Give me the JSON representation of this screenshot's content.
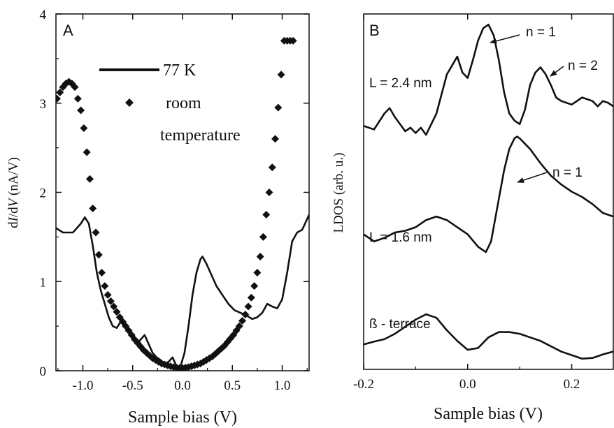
{
  "chart_data": [
    {
      "type": "line",
      "panel_label": "A",
      "xlabel": "Sample bias (V)",
      "ylabel": "dI/dV (nA/V)",
      "xlim": [
        -1.27,
        1.27
      ],
      "ylim": [
        0,
        4
      ],
      "x_ticks": [
        -1.0,
        -0.5,
        0.0,
        0.5,
        1.0
      ],
      "x_tick_labels": [
        "-1.0",
        "-0.5",
        "0.0",
        "0.5",
        "1.0"
      ],
      "y_ticks": [
        0,
        1,
        2,
        3,
        4
      ],
      "y_tick_labels": [
        "0",
        "1",
        "2",
        "3",
        "4"
      ],
      "legend_placement": "top-center",
      "series": [
        {
          "name": "77 K",
          "style": "solid-line",
          "x": [
            -1.27,
            -1.2,
            -1.1,
            -1.02,
            -0.98,
            -0.94,
            -0.9,
            -0.86,
            -0.82,
            -0.78,
            -0.74,
            -0.7,
            -0.66,
            -0.62,
            -0.58,
            -0.54,
            -0.5,
            -0.46,
            -0.42,
            -0.38,
            -0.34,
            -0.3,
            -0.26,
            -0.22,
            -0.18,
            -0.14,
            -0.1,
            -0.06,
            -0.02,
            0.02,
            0.06,
            0.1,
            0.14,
            0.18,
            0.2,
            0.24,
            0.28,
            0.34,
            0.4,
            0.46,
            0.52,
            0.58,
            0.64,
            0.7,
            0.75,
            0.8,
            0.85,
            0.9,
            0.95,
            1.0,
            1.05,
            1.1,
            1.15,
            1.2,
            1.25,
            1.27
          ],
          "y": [
            1.6,
            1.55,
            1.55,
            1.65,
            1.72,
            1.65,
            1.4,
            1.1,
            0.9,
            0.75,
            0.6,
            0.5,
            0.48,
            0.55,
            0.5,
            0.45,
            0.35,
            0.3,
            0.35,
            0.4,
            0.3,
            0.2,
            0.15,
            0.12,
            0.08,
            0.1,
            0.15,
            0.05,
            0.05,
            0.2,
            0.5,
            0.85,
            1.1,
            1.25,
            1.28,
            1.2,
            1.1,
            0.95,
            0.85,
            0.75,
            0.68,
            0.65,
            0.62,
            0.58,
            0.6,
            0.65,
            0.75,
            0.72,
            0.7,
            0.8,
            1.1,
            1.45,
            1.55,
            1.58,
            1.7,
            1.75
          ]
        },
        {
          "name": "room temperature",
          "style": "diamond-markers",
          "x": [
            -1.26,
            -1.23,
            -1.2,
            -1.17,
            -1.14,
            -1.11,
            -1.08,
            -1.05,
            -1.02,
            -0.99,
            -0.96,
            -0.93,
            -0.9,
            -0.87,
            -0.84,
            -0.81,
            -0.78,
            -0.75,
            -0.72,
            -0.69,
            -0.66,
            -0.63,
            -0.6,
            -0.57,
            -0.54,
            -0.51,
            -0.48,
            -0.45,
            -0.42,
            -0.39,
            -0.36,
            -0.33,
            -0.3,
            -0.27,
            -0.24,
            -0.21,
            -0.18,
            -0.15,
            -0.12,
            -0.09,
            -0.06,
            -0.03,
            0.0,
            0.03,
            0.06,
            0.09,
            0.12,
            0.15,
            0.18,
            0.21,
            0.24,
            0.27,
            0.3,
            0.33,
            0.36,
            0.39,
            0.42,
            0.45,
            0.48,
            0.51,
            0.54,
            0.57,
            0.6,
            0.63,
            0.66,
            0.69,
            0.72,
            0.75,
            0.78,
            0.81,
            0.84,
            0.87,
            0.9,
            0.93,
            0.96,
            0.99,
            1.02,
            1.05,
            1.08,
            1.11
          ],
          "y": [
            3.05,
            3.12,
            3.18,
            3.22,
            3.24,
            3.22,
            3.18,
            3.05,
            2.92,
            2.72,
            2.45,
            2.15,
            1.82,
            1.55,
            1.3,
            1.1,
            0.95,
            0.85,
            0.78,
            0.72,
            0.66,
            0.6,
            0.55,
            0.5,
            0.45,
            0.4,
            0.35,
            0.31,
            0.27,
            0.23,
            0.2,
            0.17,
            0.14,
            0.12,
            0.1,
            0.08,
            0.07,
            0.06,
            0.05,
            0.04,
            0.035,
            0.03,
            0.03,
            0.035,
            0.04,
            0.05,
            0.06,
            0.07,
            0.08,
            0.1,
            0.12,
            0.14,
            0.16,
            0.19,
            0.22,
            0.25,
            0.28,
            0.32,
            0.36,
            0.4,
            0.45,
            0.5,
            0.56,
            0.63,
            0.72,
            0.82,
            0.95,
            1.1,
            1.28,
            1.5,
            1.75,
            2.0,
            2.28,
            2.6,
            2.95,
            3.32,
            3.7,
            3.7,
            3.7,
            3.7
          ]
        }
      ]
    },
    {
      "type": "line",
      "panel_label": "B",
      "xlabel": "Sample bias (V)",
      "ylabel": "LDOS (arb. u.)",
      "xlim": [
        -0.2,
        0.28
      ],
      "ylim": [
        0,
        1
      ],
      "x_ticks": [
        -0.2,
        0.0,
        0.2
      ],
      "x_tick_labels": [
        "-0.2",
        "0.0",
        "0.2"
      ],
      "annotations": [
        "n = 1",
        "n = 2",
        "n = 1"
      ],
      "series": [
        {
          "name": "L = 2.4 nm",
          "x": [
            -0.2,
            -0.18,
            -0.16,
            -0.15,
            -0.14,
            -0.12,
            -0.11,
            -0.1,
            -0.09,
            -0.08,
            -0.06,
            -0.04,
            -0.03,
            -0.02,
            -0.01,
            0.0,
            0.01,
            0.02,
            0.03,
            0.04,
            0.05,
            0.06,
            0.07,
            0.08,
            0.09,
            0.1,
            0.11,
            0.12,
            0.13,
            0.14,
            0.15,
            0.16,
            0.17,
            0.18,
            0.19,
            0.2,
            0.22,
            0.24,
            0.25,
            0.26,
            0.27,
            0.28
          ],
          "y": [
            0.685,
            0.675,
            0.72,
            0.735,
            0.71,
            0.67,
            0.68,
            0.665,
            0.68,
            0.66,
            0.72,
            0.83,
            0.855,
            0.88,
            0.835,
            0.82,
            0.87,
            0.925,
            0.96,
            0.97,
            0.94,
            0.87,
            0.78,
            0.72,
            0.7,
            0.69,
            0.73,
            0.8,
            0.835,
            0.85,
            0.83,
            0.8,
            0.765,
            0.755,
            0.75,
            0.745,
            0.765,
            0.755,
            0.74,
            0.755,
            0.75,
            0.74
          ]
        },
        {
          "name": "L = 1.6 nm",
          "x": [
            -0.2,
            -0.18,
            -0.16,
            -0.14,
            -0.12,
            -0.1,
            -0.08,
            -0.06,
            -0.04,
            -0.02,
            0.0,
            0.02,
            0.035,
            0.045,
            0.06,
            0.07,
            0.08,
            0.09,
            0.095,
            0.1,
            0.12,
            0.14,
            0.16,
            0.18,
            0.2,
            0.22,
            0.24,
            0.26,
            0.28
          ],
          "y": [
            0.38,
            0.36,
            0.37,
            0.385,
            0.39,
            0.4,
            0.42,
            0.43,
            0.42,
            0.4,
            0.38,
            0.345,
            0.33,
            0.36,
            0.48,
            0.56,
            0.62,
            0.65,
            0.655,
            0.65,
            0.62,
            0.58,
            0.545,
            0.52,
            0.5,
            0.485,
            0.465,
            0.44,
            0.43
          ]
        },
        {
          "name": "ß - terrace",
          "x": [
            -0.2,
            -0.18,
            -0.16,
            -0.14,
            -0.12,
            -0.1,
            -0.08,
            -0.06,
            -0.04,
            -0.02,
            0.0,
            0.02,
            0.04,
            0.06,
            0.08,
            0.1,
            0.12,
            0.14,
            0.16,
            0.18,
            0.2,
            0.22,
            0.24,
            0.26,
            0.28
          ],
          "y": [
            0.07,
            0.078,
            0.085,
            0.1,
            0.12,
            0.14,
            0.155,
            0.145,
            0.11,
            0.08,
            0.055,
            0.06,
            0.09,
            0.105,
            0.105,
            0.1,
            0.09,
            0.08,
            0.065,
            0.05,
            0.04,
            0.03,
            0.032,
            0.042,
            0.05
          ]
        }
      ]
    }
  ],
  "labels": {
    "panel_a": "A",
    "panel_b": "B",
    "legend_line": "77 K",
    "legend_marker_line1": "room",
    "legend_marker_line2": "temperature",
    "ylabel_a_pre": "d",
    "ylabel_a_I": "I",
    "ylabel_a_mid": "/d",
    "ylabel_a_V": "V",
    "ylabel_a_post": "  (nA/V)",
    "ylabel_b": "LDOS (arb. u.)",
    "xlabel_a": "Sample bias (V)",
    "xlabel_b": "Sample bias (V)",
    "series_b1": "L = 2.4 nm",
    "series_b2": "L = 1.6 nm",
    "series_b3": "ß - terrace",
    "ann_n1_top": "n = 1",
    "ann_n2": "n = 2",
    "ann_n1_mid": "n = 1"
  }
}
